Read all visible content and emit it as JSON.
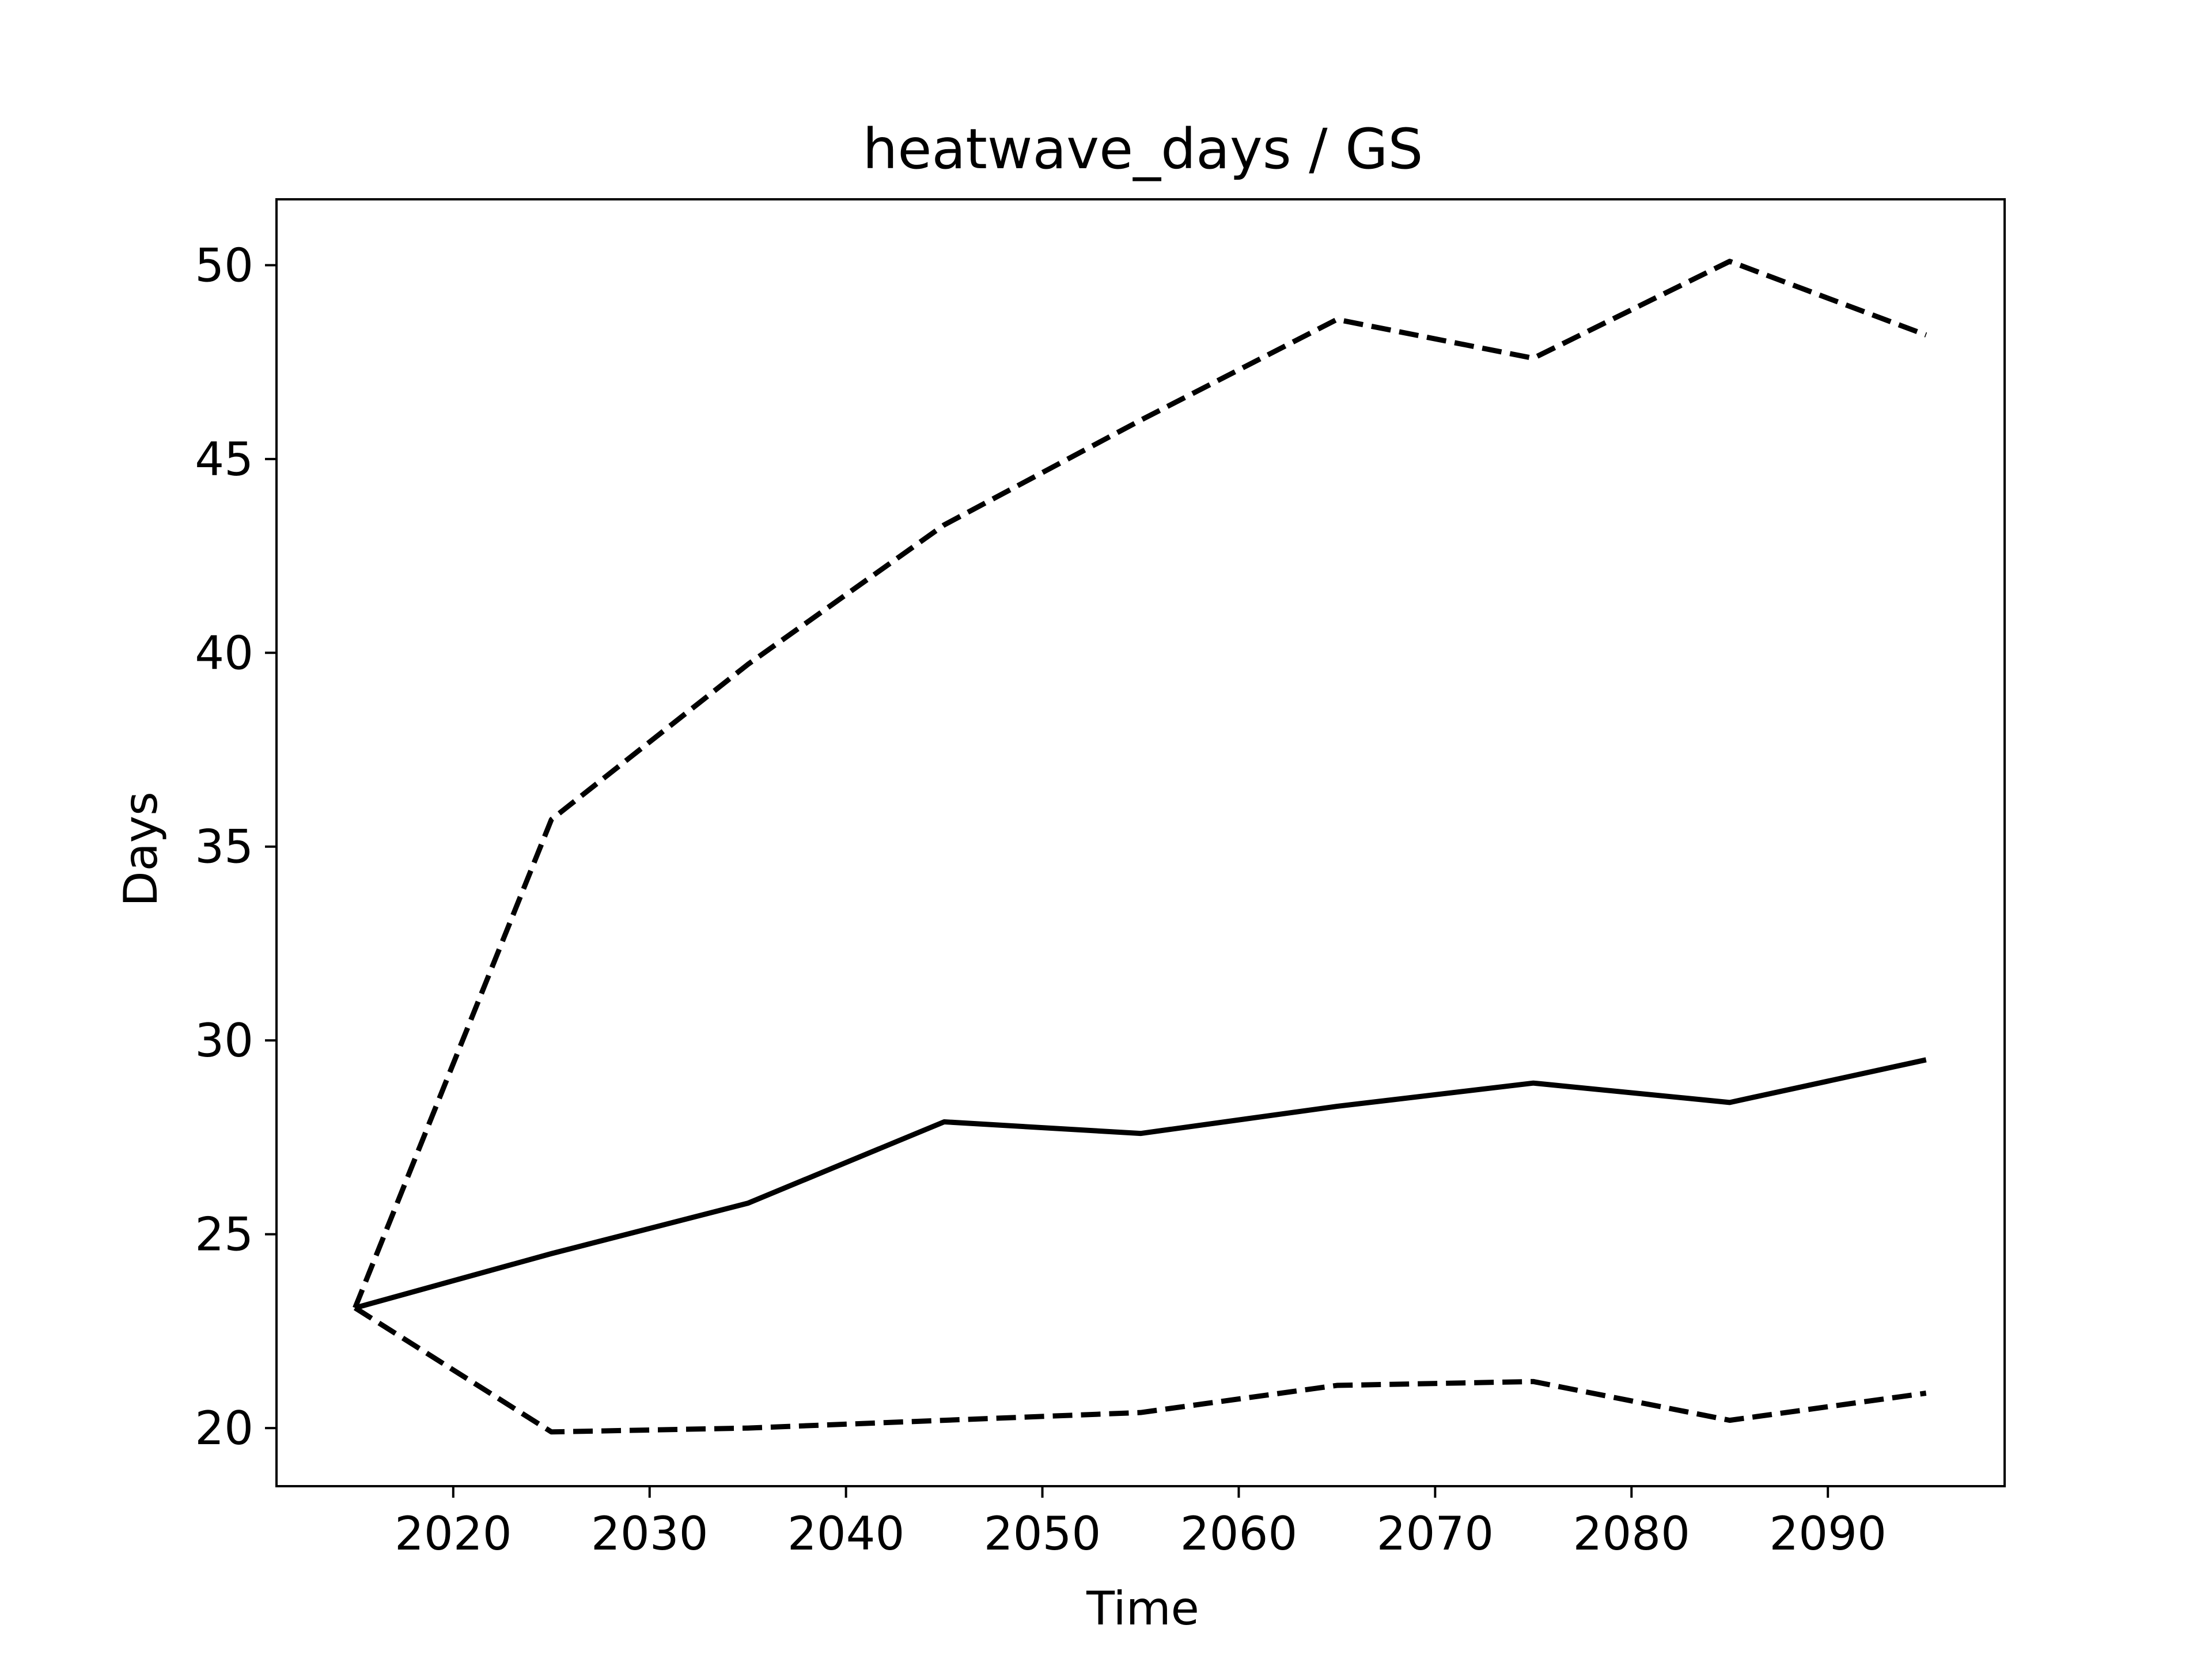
{
  "chart_data": {
    "type": "line",
    "title": "heatwave_days / GS",
    "xlabel": "Time",
    "ylabel": "Days",
    "x": [
      2015,
      2025,
      2035,
      2045,
      2055,
      2065,
      2075,
      2085,
      2095
    ],
    "xlim": [
      2011,
      2099
    ],
    "ylim": [
      18.5,
      51.7
    ],
    "xticks": [
      2020,
      2030,
      2040,
      2050,
      2060,
      2070,
      2080,
      2090
    ],
    "yticks": [
      20,
      25,
      30,
      35,
      40,
      45,
      50
    ],
    "grid": false,
    "series": [
      {
        "id": "median",
        "style": "solid",
        "color": "#000000",
        "values": [
          23.1,
          24.5,
          25.8,
          27.9,
          27.6,
          28.3,
          28.9,
          28.4,
          29.5
        ]
      },
      {
        "id": "upper",
        "style": "dashed",
        "color": "#000000",
        "values": [
          23.1,
          35.7,
          39.7,
          43.3,
          46.0,
          48.6,
          47.6,
          50.1,
          48.2
        ]
      },
      {
        "id": "lower",
        "style": "dashed",
        "color": "#000000",
        "values": [
          23.1,
          19.9,
          20.0,
          20.2,
          20.4,
          21.1,
          21.2,
          20.2,
          20.9
        ]
      }
    ]
  }
}
